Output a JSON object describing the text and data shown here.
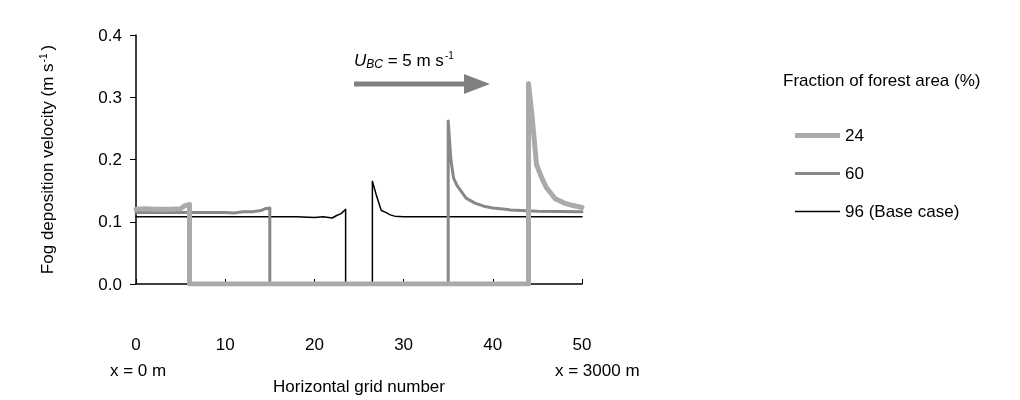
{
  "chart_data": {
    "type": "line",
    "ylabel": "Fog deposition velocity (m s$^{-1}$)",
    "xlabel": "Horizontal grid number",
    "legend_title": "Fraction of forest area (%)",
    "annotations": [
      "$_{}$U$_{BC}$ = 5 m s$^{-1}$",
      "x = 0 m",
      "x = 3000 m"
    ],
    "xlim": [
      0,
      50
    ],
    "xticks": [
      0,
      10,
      20,
      30,
      40,
      50
    ],
    "ylim": [
      0,
      0.4
    ],
    "yticks": [
      {
        "value": 0,
        "label": "0.0"
      },
      0.1,
      0.2,
      0.3,
      0.4
    ],
    "grid": false,
    "legend": "right",
    "marker": "none",
    "line_style": "solid",
    "series": [
      {
        "name": "24",
        "color": "#aaaaaa",
        "x": [
          0,
          1,
          2,
          3,
          4,
          5,
          5.5,
          6,
          6,
          44,
          44,
          44.4,
          44.9,
          45.5,
          46,
          47,
          48,
          49,
          50
        ],
        "values": [
          0.12,
          0.121,
          0.12,
          0.12,
          0.12,
          0.121,
          0.126,
          0.128,
          0,
          0,
          0.322,
          0.27,
          0.192,
          0.17,
          0.155,
          0.137,
          0.13,
          0.126,
          0.123
        ]
      },
      {
        "name": "60",
        "color": "#888888",
        "x": [
          0,
          2,
          4,
          6,
          8,
          10,
          11,
          12,
          13,
          14,
          14.5,
          15,
          15,
          35,
          35,
          35.3,
          35.6,
          36,
          36.5,
          37,
          38,
          39,
          40,
          42,
          45,
          50
        ],
        "values": [
          0.115,
          0.115,
          0.115,
          0.115,
          0.115,
          0.115,
          0.114,
          0.116,
          0.116,
          0.118,
          0.121,
          0.122,
          0,
          0,
          0.262,
          0.2,
          0.17,
          0.158,
          0.148,
          0.138,
          0.13,
          0.125,
          0.122,
          0.119,
          0.117,
          0.116
        ]
      },
      {
        "name": "96 (Base case)",
        "color": "#000000",
        "x": [
          0,
          5,
          10,
          15,
          18,
          20,
          21,
          22,
          22.5,
          23,
          23.5,
          23.5,
          26.5,
          26.5,
          27,
          27.5,
          28,
          28.5,
          29,
          30,
          35,
          40,
          45,
          50
        ],
        "values": [
          0.108,
          0.108,
          0.108,
          0.108,
          0.108,
          0.107,
          0.108,
          0.106,
          0.11,
          0.113,
          0.12,
          0,
          0,
          0.165,
          0.14,
          0.118,
          0.115,
          0.111,
          0.109,
          0.108,
          0.108,
          0.108,
          0.108,
          0.108
        ]
      }
    ]
  }
}
